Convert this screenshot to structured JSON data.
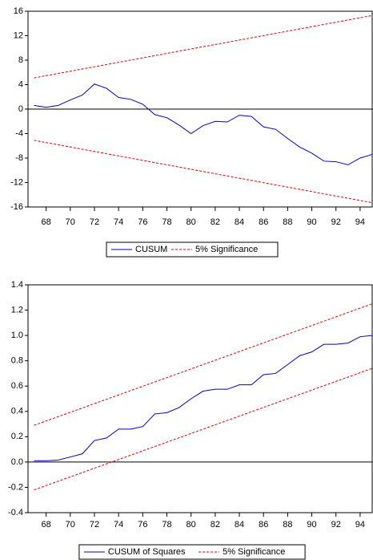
{
  "chart_data": [
    {
      "type": "line",
      "zero_line": true,
      "series": [
        {
          "name": "CUSUM",
          "color": "#0000cc",
          "dash": false,
          "x": [
            67,
            68,
            69,
            70,
            71,
            72,
            73,
            74,
            75,
            76,
            77,
            78,
            79,
            80,
            81,
            82,
            83,
            84,
            85,
            86,
            87,
            88,
            89,
            90,
            91,
            92,
            93,
            94,
            95
          ],
          "values": [
            0.6,
            0.3,
            0.6,
            1.5,
            2.3,
            4.1,
            3.4,
            1.9,
            1.6,
            0.8,
            -0.9,
            -1.4,
            -2.6,
            -4.0,
            -2.7,
            -2.0,
            -2.1,
            -1.0,
            -1.2,
            -2.9,
            -3.3,
            -4.8,
            -6.2,
            -7.2,
            -8.5,
            -8.6,
            -9.1,
            -8.0,
            -7.4
          ]
        },
        {
          "name": "5% Significance",
          "color": "#e00000",
          "dash": true,
          "x": [
            67,
            95
          ],
          "values": [
            5.1,
            15.3
          ]
        },
        {
          "color": "#e00000",
          "dash": true,
          "x": [
            67,
            95
          ],
          "values": [
            -5.1,
            -15.3
          ]
        }
      ],
      "xlim": [
        66.5,
        95
      ],
      "xticks": [
        68,
        70,
        72,
        74,
        76,
        78,
        80,
        82,
        84,
        86,
        88,
        90,
        92,
        94
      ],
      "ylim": [
        -16,
        16
      ],
      "yticks": [
        -16,
        -12,
        -8,
        -4,
        0,
        4,
        8,
        12,
        16
      ]
    },
    {
      "type": "line",
      "zero_line": true,
      "series": [
        {
          "name": "CUSUM of Squares",
          "color": "#0000cc",
          "dash": false,
          "x": [
            67,
            68,
            69,
            70,
            71,
            72,
            73,
            74,
            75,
            76,
            77,
            78,
            79,
            80,
            81,
            82,
            83,
            84,
            85,
            86,
            87,
            88,
            89,
            90,
            91,
            92,
            93,
            94,
            95
          ],
          "values": [
            0.01,
            0.01,
            0.015,
            0.04,
            0.065,
            0.17,
            0.19,
            0.26,
            0.26,
            0.28,
            0.38,
            0.39,
            0.43,
            0.5,
            0.56,
            0.575,
            0.575,
            0.61,
            0.61,
            0.69,
            0.7,
            0.77,
            0.84,
            0.87,
            0.93,
            0.93,
            0.94,
            0.99,
            1.0
          ]
        },
        {
          "name": "5% Significance",
          "color": "#e00000",
          "dash": true,
          "x": [
            67,
            95
          ],
          "values": [
            0.29,
            1.25
          ]
        },
        {
          "color": "#e00000",
          "dash": true,
          "x": [
            67,
            95
          ],
          "values": [
            -0.22,
            0.74
          ]
        }
      ],
      "xlim": [
        66.5,
        95
      ],
      "xticks": [
        68,
        70,
        72,
        74,
        76,
        78,
        80,
        82,
        84,
        86,
        88,
        90,
        92,
        94
      ],
      "ylim": [
        -0.4,
        1.4
      ],
      "yticks": [
        -0.4,
        -0.2,
        {
          "value": 0,
          "label": "0.0"
        },
        0.2,
        0.4,
        0.6,
        0.8,
        {
          "value": 1,
          "label": "1.0"
        },
        1.2,
        1.4
      ]
    }
  ]
}
